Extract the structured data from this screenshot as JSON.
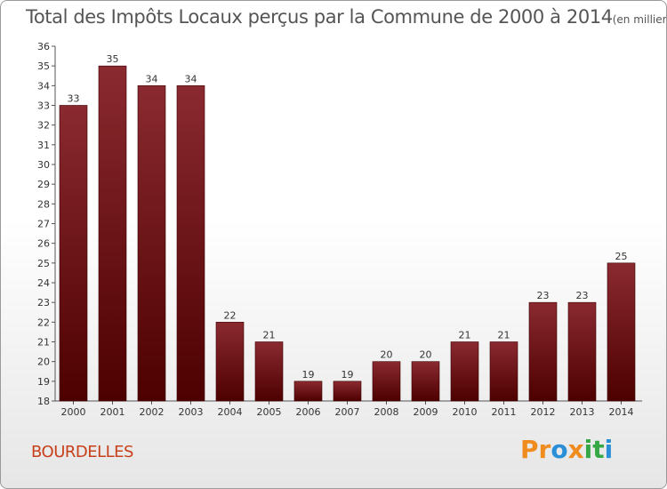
{
  "chart_data": {
    "type": "bar",
    "title": "Total des Impôts Locaux perçus par la Commune de 2000 à 2014",
    "unit_note": "(en milliers d'€)",
    "categories": [
      "2000",
      "2001",
      "2002",
      "2003",
      "2004",
      "2005",
      "2006",
      "2007",
      "2008",
      "2009",
      "2010",
      "2011",
      "2012",
      "2013",
      "2014"
    ],
    "values": [
      33,
      35,
      34,
      34,
      22,
      21,
      19,
      19,
      20,
      20,
      21,
      21,
      23,
      23,
      25
    ],
    "ylim": [
      18,
      36
    ],
    "yticks": [
      18,
      19,
      20,
      21,
      22,
      23,
      24,
      25,
      26,
      27,
      28,
      29,
      30,
      31,
      32,
      33,
      34,
      35,
      36
    ],
    "xlabel": "",
    "ylabel": "",
    "bar_color_top": "#8a2a30",
    "bar_color_bottom": "#4d0000"
  },
  "commune_name": "BOURDELLES",
  "logo": {
    "parts": [
      "Pr",
      "o",
      "x",
      "i",
      "t",
      "i"
    ]
  }
}
